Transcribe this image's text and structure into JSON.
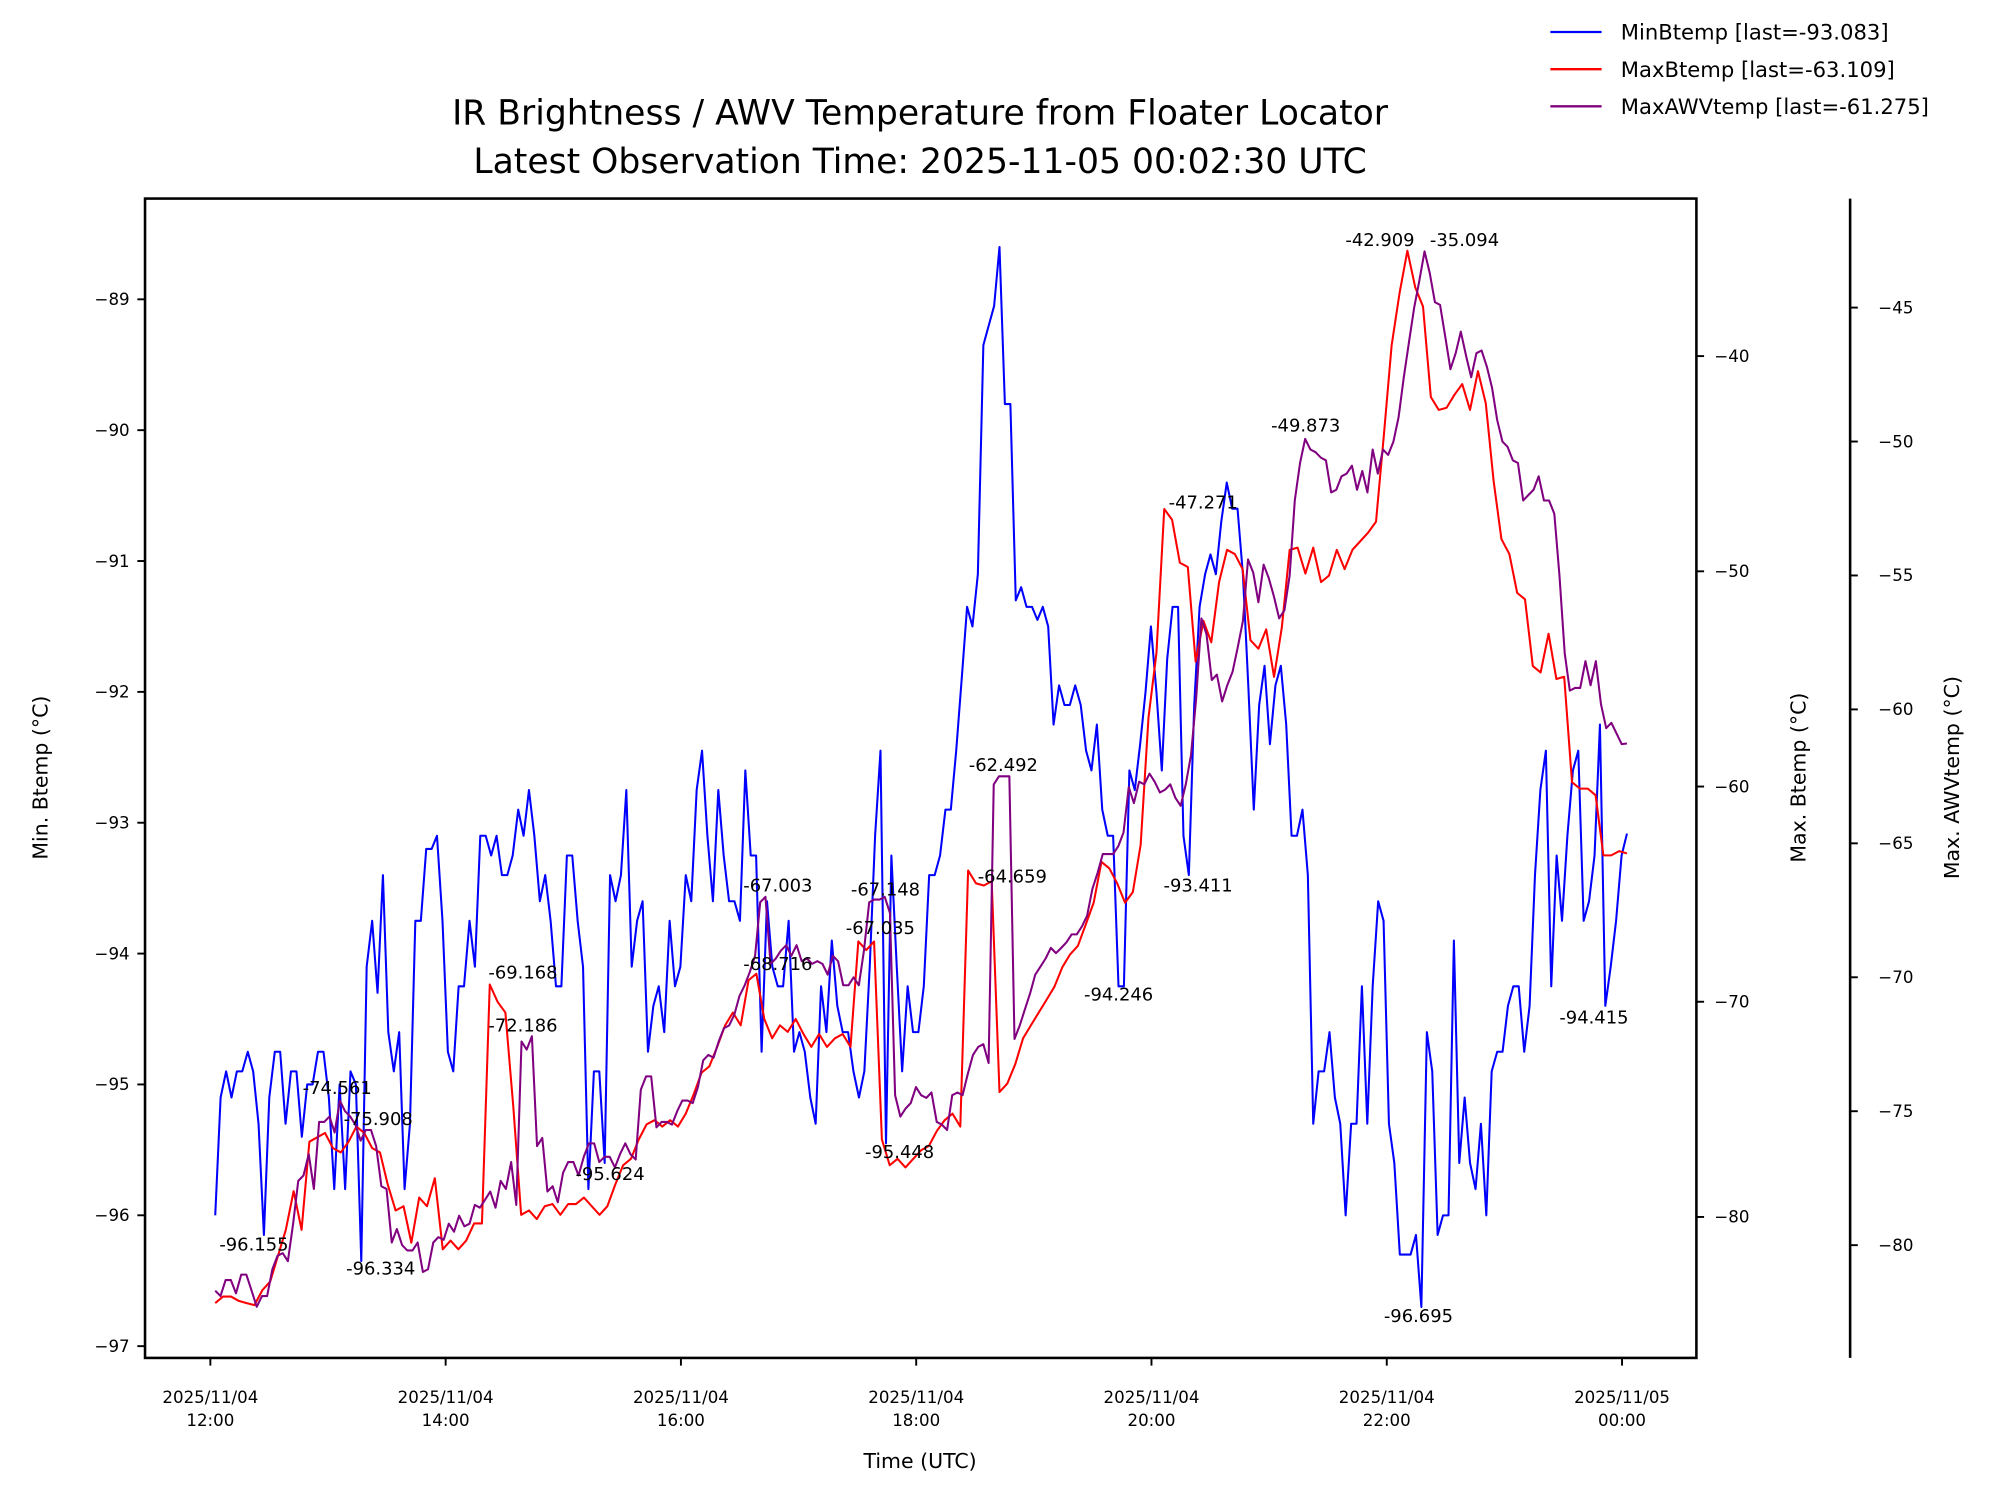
{
  "chart_data": {
    "type": "line",
    "title": "IR Brightness / AWV Temperature from Floater Locator",
    "subtitle": "Latest Observation Time: 2025-11-05 00:02:30 UTC",
    "xlabel": "Time (UTC)",
    "x_range_utc": [
      "2025-11-04 11:26",
      "2025-11-05 00:37"
    ],
    "series_time_span_utc": [
      "2025-11-04 12:02:30",
      "2025-11-05 00:02:30"
    ],
    "x_ticks": [
      {
        "hour": 0,
        "line1": "2025/11/04",
        "line2": "12:00"
      },
      {
        "hour": 2,
        "line1": "2025/11/04",
        "line2": "14:00"
      },
      {
        "hour": 4,
        "line1": "2025/11/04",
        "line2": "16:00"
      },
      {
        "hour": 6,
        "line1": "2025/11/04",
        "line2": "18:00"
      },
      {
        "hour": 8,
        "line1": "2025/11/04",
        "line2": "20:00"
      },
      {
        "hour": 10,
        "line1": "2025/11/04",
        "line2": "22:00"
      },
      {
        "hour": 12,
        "line1": "2025/11/05",
        "line2": "00:00"
      }
    ],
    "axes": {
      "left": {
        "label": "Min. Btemp (°C)",
        "ylim": [
          -97.09,
          -88.23
        ],
        "ticks": [
          "-89",
          "-90",
          "-91",
          "-92",
          "-93",
          "-94",
          "-95",
          "-96",
          "-97"
        ]
      },
      "right1": {
        "label": "Max. Btemp (°C)",
        "ylim": [
          -86.55,
          -32.68
        ],
        "ticks": [
          "-40",
          "-50",
          "-60",
          "-70",
          "-80"
        ]
      },
      "right2": {
        "label": "Max. AWVtemp (°C)",
        "ylim": [
          -84.21,
          -40.93
        ],
        "ticks": [
          "-45",
          "-50",
          "-55",
          "-60",
          "-65",
          "-70",
          "-75",
          "-80"
        ]
      }
    },
    "legend_position": "top-right",
    "series": [
      {
        "name": "MinBtemp [last=-93.083]",
        "axis": "left",
        "color": "#0000ff",
        "values": [
          -96.0,
          -95.1,
          -94.9,
          -95.1,
          -94.9,
          -94.9,
          -94.75,
          -94.9,
          -95.3,
          -96.15,
          -95.1,
          -94.75,
          -94.75,
          -95.3,
          -94.9,
          -94.9,
          -95.4,
          -95.0,
          -95.0,
          -94.75,
          -94.75,
          -95.1,
          -95.8,
          -95.0,
          -95.8,
          -94.9,
          -95.0,
          -96.35,
          -94.1,
          -93.75,
          -94.3,
          -93.4,
          -94.6,
          -94.9,
          -94.6,
          -95.8,
          -95.3,
          -93.75,
          -93.75,
          -93.2,
          -93.2,
          -93.1,
          -93.75,
          -94.75,
          -94.9,
          -94.25,
          -94.25,
          -93.75,
          -94.1,
          -93.1,
          -93.1,
          -93.25,
          -93.1,
          -93.4,
          -93.4,
          -93.25,
          -92.9,
          -93.1,
          -92.75,
          -93.1,
          -93.6,
          -93.4,
          -93.75,
          -94.25,
          -94.25,
          -93.25,
          -93.25,
          -93.75,
          -94.1,
          -95.8,
          -94.9,
          -94.9,
          -95.6,
          -93.4,
          -93.6,
          -93.4,
          -92.75,
          -94.1,
          -93.75,
          -93.6,
          -94.75,
          -94.4,
          -94.25,
          -94.6,
          -93.75,
          -94.25,
          -94.1,
          -93.4,
          -93.6,
          -92.75,
          -92.45,
          -93.1,
          -93.6,
          -92.75,
          -93.25,
          -93.6,
          -93.6,
          -93.75,
          -92.6,
          -93.25,
          -93.25,
          -94.75,
          -93.6,
          -94.1,
          -94.25,
          -94.25,
          -93.75,
          -94.75,
          -94.6,
          -94.75,
          -95.1,
          -95.3,
          -94.25,
          -94.6,
          -93.9,
          -94.4,
          -94.6,
          -94.6,
          -94.9,
          -95.1,
          -94.9,
          -94.1,
          -93.1,
          -92.45,
          -95.45,
          -93.25,
          -94.1,
          -94.9,
          -94.25,
          -94.6,
          -94.6,
          -94.25,
          -93.4,
          -93.4,
          -93.25,
          -92.9,
          -92.9,
          -92.45,
          -91.9,
          -91.35,
          -91.5,
          -91.1,
          -89.35,
          -89.2,
          -89.05,
          -88.6,
          -89.8,
          -89.8,
          -91.3,
          -91.2,
          -91.35,
          -91.35,
          -91.45,
          -91.35,
          -91.5,
          -92.25,
          -91.95,
          -92.1,
          -92.1,
          -91.95,
          -92.1,
          -92.45,
          -92.6,
          -92.25,
          -92.9,
          -93.1,
          -93.1,
          -94.25,
          -94.25,
          -92.6,
          -92.75,
          -92.4,
          -92.0,
          -91.5,
          -92.0,
          -92.6,
          -91.75,
          -91.35,
          -91.35,
          -93.1,
          -93.4,
          -92.1,
          -91.35,
          -91.1,
          -90.95,
          -91.1,
          -90.7,
          -90.4,
          -90.6,
          -90.6,
          -91.1,
          -91.95,
          -92.9,
          -92.1,
          -91.8,
          -92.4,
          -91.95,
          -91.8,
          -92.25,
          -93.1,
          -93.1,
          -92.9,
          -93.4,
          -95.3,
          -94.9,
          -94.9,
          -94.6,
          -95.1,
          -95.3,
          -96.0,
          -95.3,
          -95.3,
          -94.25,
          -95.3,
          -94.25,
          -93.6,
          -93.75,
          -95.3,
          -95.6,
          -96.3,
          -96.3,
          -96.3,
          -96.15,
          -96.7,
          -94.6,
          -94.9,
          -96.15,
          -96.0,
          -96.0,
          -93.9,
          -95.6,
          -95.1,
          -95.6,
          -95.8,
          -95.3,
          -96.0,
          -94.9,
          -94.75,
          -94.75,
          -94.4,
          -94.25,
          -94.25,
          -94.75,
          -94.4,
          -93.4,
          -92.75,
          -92.45,
          -94.25,
          -93.25,
          -93.75,
          -93.1,
          -92.6,
          -92.45,
          -93.75,
          -93.6,
          -93.25,
          -92.25,
          -94.4,
          -94.1,
          -93.75,
          -93.25,
          -93.083
        ]
      },
      {
        "name": "MaxBtemp [last=-63.109]",
        "axis": "right1",
        "color": "#ff0000",
        "values": [
          -84.0,
          -83.7,
          -83.7,
          -83.9,
          -84.0,
          -84.1,
          -83.4,
          -83.0,
          -81.8,
          -80.6,
          -78.8,
          -80.6,
          -76.5,
          -76.3,
          -76.1,
          -76.8,
          -77.0,
          -76.5,
          -75.8,
          -76.1,
          -76.8,
          -77.0,
          -78.5,
          -79.7,
          -79.5,
          -81.2,
          -79.1,
          -79.5,
          -78.2,
          -81.5,
          -81.1,
          -81.5,
          -81.1,
          -80.3,
          -80.3,
          -69.2,
          -70.0,
          -70.5,
          -74.9,
          -79.9,
          -79.7,
          -80.1,
          -79.5,
          -79.4,
          -79.9,
          -79.4,
          -79.4,
          -79.1,
          -79.5,
          -79.9,
          -79.5,
          -78.5,
          -77.6,
          -77.3,
          -76.4,
          -75.7,
          -75.5,
          -75.8,
          -75.5,
          -75.8,
          -75.2,
          -74.3,
          -73.3,
          -73.0,
          -72.1,
          -71.1,
          -70.5,
          -71.1,
          -69.0,
          -68.7,
          -70.8,
          -71.7,
          -71.1,
          -71.4,
          -70.8,
          -71.5,
          -72.1,
          -71.5,
          -72.1,
          -71.7,
          -71.5,
          -72.1,
          -67.2,
          -67.6,
          -67.2,
          -76.4,
          -77.6,
          -77.3,
          -77.7,
          -77.3,
          -76.9,
          -76.7,
          -76.0,
          -75.5,
          -75.2,
          -75.8,
          -63.9,
          -64.5,
          -64.6,
          -64.4,
          -74.2,
          -73.8,
          -72.9,
          -71.7,
          -71.1,
          -70.5,
          -69.9,
          -69.3,
          -68.4,
          -67.8,
          -67.4,
          -66.4,
          -65.4,
          -63.5,
          -63.8,
          -64.5,
          -65.4,
          -64.9,
          -62.7,
          -56.8,
          -53.8,
          -47.1,
          -47.6,
          -49.6,
          -49.8,
          -54.2,
          -52.3,
          -53.3,
          -50.5,
          -49.0,
          -49.2,
          -49.9,
          -53.2,
          -53.6,
          -52.7,
          -54.9,
          -52.6,
          -49.0,
          -48.9,
          -50.1,
          -48.9,
          -50.5,
          -50.2,
          -49.0,
          -49.9,
          -49.0,
          -48.6,
          -48.2,
          -47.7,
          -43.7,
          -39.5,
          -37.1,
          -35.1,
          -36.8,
          -37.7,
          -41.9,
          -42.5,
          -42.4,
          -41.8,
          -41.3,
          -42.5,
          -40.7,
          -42.2,
          -45.8,
          -48.5,
          -49.2,
          -51.0,
          -51.3,
          -54.4,
          -54.7,
          -52.9,
          -55.0,
          -54.9,
          -59.8,
          -60.1,
          -60.1,
          -60.4,
          -63.2,
          -63.2,
          -63.0,
          -63.109
        ]
      },
      {
        "name": "MaxAWVtemp [last=-61.275]",
        "axis": "right2",
        "color": "#800080",
        "values": [
          -81.7,
          -81.9,
          -81.3,
          -81.3,
          -81.8,
          -81.1,
          -81.1,
          -81.7,
          -82.3,
          -81.9,
          -81.9,
          -80.9,
          -80.4,
          -80.3,
          -80.6,
          -79.2,
          -77.6,
          -77.4,
          -76.6,
          -77.9,
          -75.4,
          -75.4,
          -75.2,
          -75.8,
          -74.6,
          -75.0,
          -75.2,
          -75.5,
          -76.1,
          -75.7,
          -75.7,
          -76.3,
          -77.8,
          -77.9,
          -79.9,
          -79.4,
          -80.0,
          -80.2,
          -80.2,
          -79.9,
          -81.0,
          -80.9,
          -79.9,
          -79.7,
          -79.8,
          -79.2,
          -79.5,
          -78.9,
          -79.3,
          -79.2,
          -78.5,
          -78.6,
          -78.3,
          -78.0,
          -78.6,
          -77.6,
          -77.9,
          -76.9,
          -78.5,
          -72.4,
          -72.7,
          -72.2,
          -76.3,
          -76.0,
          -78.0,
          -77.8,
          -78.4,
          -77.3,
          -76.9,
          -76.9,
          -77.4,
          -76.7,
          -76.2,
          -76.2,
          -76.9,
          -76.7,
          -76.7,
          -77.1,
          -76.6,
          -76.2,
          -76.6,
          -76.8,
          -74.2,
          -73.7,
          -73.7,
          -75.6,
          -75.4,
          -75.4,
          -75.5,
          -75.0,
          -74.6,
          -74.6,
          -74.7,
          -74.1,
          -73.1,
          -72.9,
          -73.0,
          -72.4,
          -71.9,
          -71.8,
          -71.4,
          -70.7,
          -70.3,
          -69.8,
          -69.2,
          -67.2,
          -67.0,
          -69.5,
          -69.3,
          -69.0,
          -68.8,
          -69.2,
          -68.8,
          -69.4,
          -69.3,
          -69.5,
          -69.4,
          -69.5,
          -69.9,
          -69.2,
          -69.4,
          -70.3,
          -70.3,
          -70.0,
          -70.3,
          -69.0,
          -67.2,
          -67.1,
          -67.1,
          -67.0,
          -67.6,
          -74.4,
          -75.2,
          -74.9,
          -74.7,
          -74.1,
          -74.4,
          -74.5,
          -74.3,
          -75.4,
          -75.5,
          -75.7,
          -74.4,
          -74.3,
          -74.4,
          -73.6,
          -72.9,
          -72.6,
          -72.5,
          -73.2,
          -62.8,
          -62.5,
          -62.5,
          -62.5,
          -72.3,
          -71.8,
          -71.2,
          -70.6,
          -69.9,
          -69.6,
          -69.3,
          -68.9,
          -69.1,
          -68.9,
          -68.7,
          -68.4,
          -68.4,
          -68.1,
          -67.7,
          -66.7,
          -66.1,
          -65.4,
          -65.4,
          -65.4,
          -65.1,
          -64.6,
          -62.9,
          -63.5,
          -62.7,
          -62.8,
          -62.4,
          -62.7,
          -63.1,
          -63.0,
          -62.8,
          -63.3,
          -63.6,
          -62.8,
          -61.7,
          -59.6,
          -56.6,
          -57.2,
          -58.9,
          -58.7,
          -59.7,
          -59.1,
          -58.6,
          -57.7,
          -56.7,
          -54.4,
          -54.9,
          -56.0,
          -54.6,
          -55.1,
          -55.8,
          -56.6,
          -56.3,
          -55.0,
          -52.2,
          -50.8,
          -49.9,
          -50.3,
          -50.4,
          -50.6,
          -50.7,
          -51.9,
          -51.8,
          -51.3,
          -51.2,
          -50.9,
          -51.8,
          -51.1,
          -51.9,
          -50.3,
          -51.2,
          -50.3,
          -50.5,
          -50.0,
          -49.1,
          -47.6,
          -46.3,
          -45.0,
          -44.0,
          -42.9,
          -43.7,
          -44.8,
          -44.9,
          -46.1,
          -47.3,
          -46.7,
          -45.9,
          -46.8,
          -47.6,
          -46.7,
          -46.6,
          -47.2,
          -48.0,
          -49.2,
          -50.0,
          -50.2,
          -50.7,
          -50.8,
          -52.2,
          -52.0,
          -51.8,
          -51.3,
          -52.2,
          -52.2,
          -52.7,
          -55.0,
          -57.9,
          -59.3,
          -59.2,
          -59.2,
          -58.2,
          -59.1,
          -58.2,
          -59.8,
          -60.7,
          -60.5,
          -60.9,
          -61.3,
          -61.275
        ]
      }
    ],
    "annotations": [
      "-96.155",
      "-96.334",
      "-74.561",
      "-75.908",
      "-69.168",
      "-72.186",
      "-95.624",
      "-67.003",
      "-68.716",
      "-67.148",
      "-67.035",
      "-95.448",
      "-62.492",
      "-64.659",
      "-94.246",
      "-93.411",
      "-47.271",
      "-49.873",
      "-42.909",
      "-35.094",
      "-96.695",
      "-94.415"
    ]
  }
}
